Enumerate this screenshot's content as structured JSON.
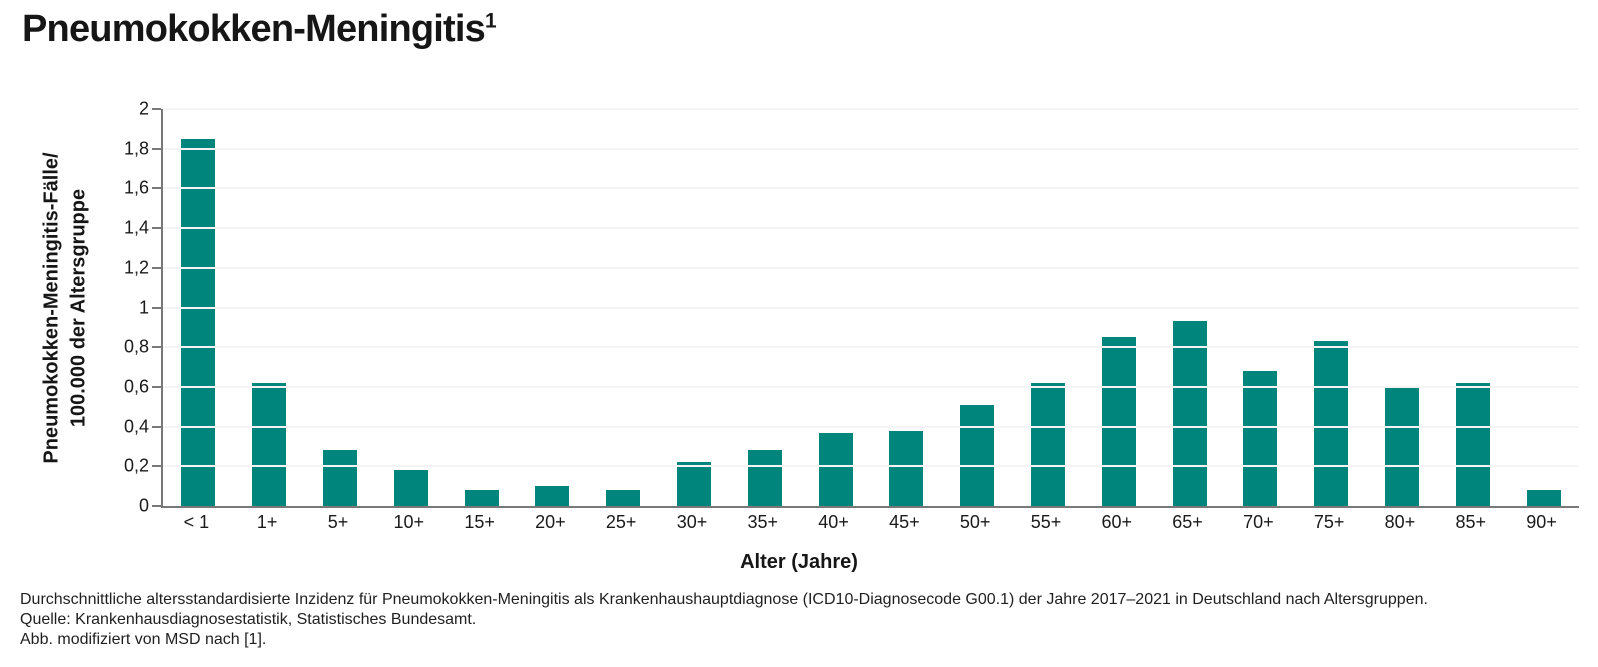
{
  "title": {
    "text": "Pneumokokken-Meningitis",
    "superscript": "1"
  },
  "chart_data": {
    "type": "bar",
    "title": "Pneumokokken-Meningitis (1)",
    "categories": [
      "< 1",
      "1+",
      "5+",
      "10+",
      "15+",
      "20+",
      "25+",
      "30+",
      "35+",
      "40+",
      "45+",
      "50+",
      "55+",
      "60+",
      "65+",
      "70+",
      "75+",
      "80+",
      "85+",
      "90+"
    ],
    "values": [
      1.85,
      0.62,
      0.28,
      0.18,
      0.08,
      0.1,
      0.08,
      0.22,
      0.28,
      0.37,
      0.38,
      0.51,
      0.62,
      0.85,
      0.93,
      0.68,
      0.83,
      0.6,
      0.62,
      0.08
    ],
    "xlabel": "Alter (Jahre)",
    "ylabel_line1": "Pneumokokken-Meningitis-Fälle/",
    "ylabel_line2": "100.000 der Altersgruppe",
    "ylim": [
      0,
      2
    ],
    "ytick_step": 0.2,
    "ytick_labels": [
      "0",
      "0,2",
      "0,4",
      "0,6",
      "0,8",
      "1",
      "1,2",
      "1,4",
      "1,6",
      "1,8",
      "2"
    ],
    "grid": "horizontal",
    "legend": "none"
  },
  "footnotes": {
    "line1": "Durchschnittliche altersstandardisierte Inzidenz für Pneumokokken-Meningitis als Krankenhaushauptdiagnose (ICD10-Diagnosecode G00.1) der Jahre 2017–2021 in Deutschland nach Altersgruppen.",
    "line2": "Quelle: Krankenhausdiagnosestatistik, Statistisches Bundesamt.",
    "line3": "Abb. modifiziert von MSD nach [1]."
  },
  "colors": {
    "bar": "#00857C",
    "axis": "#787878",
    "grid": "#f4f4f4",
    "text": "#1a1a1a"
  }
}
